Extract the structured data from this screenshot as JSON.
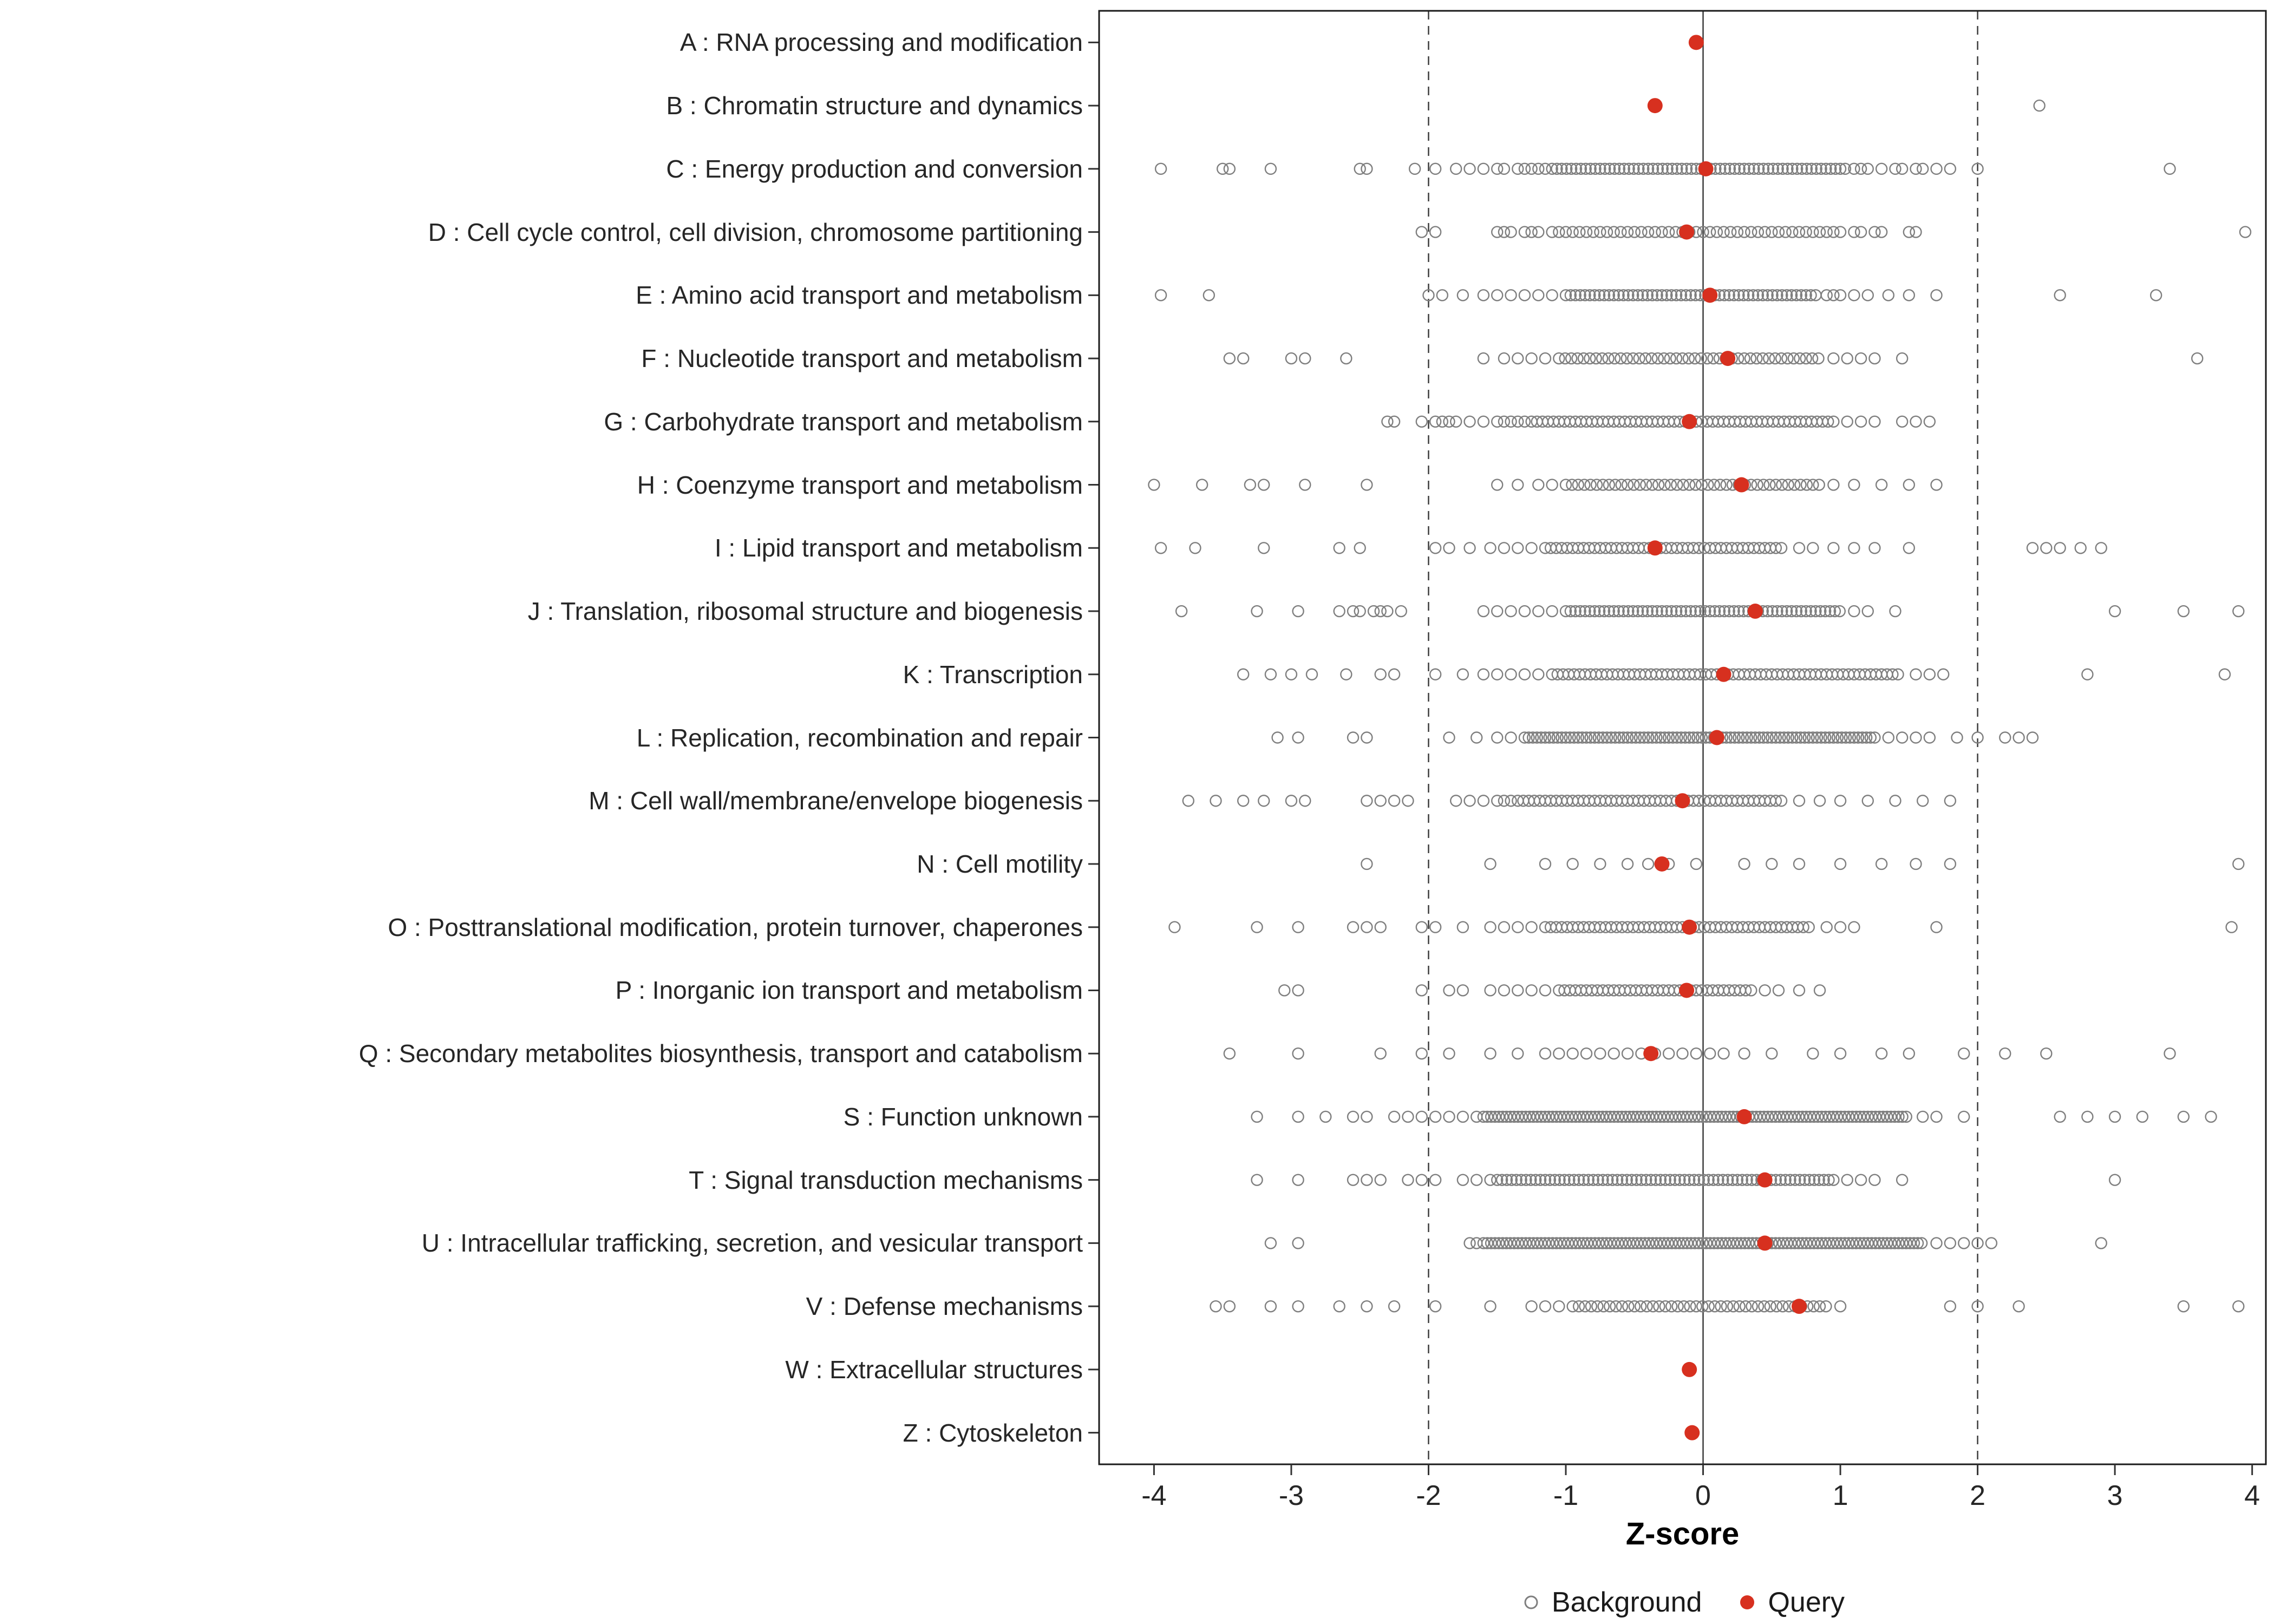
{
  "chart_data": {
    "type": "scatter",
    "subtype": "strip-dot-plot",
    "title": "",
    "xlabel": "Z-score",
    "ylabel": "",
    "xlim": [
      -4.4,
      4.1
    ],
    "x_ticks": [
      -4,
      -3,
      -2,
      -1,
      0,
      1,
      2,
      3,
      4
    ],
    "grid": false,
    "reference_lines": {
      "solid": [
        0
      ],
      "dashed": [
        -2,
        2
      ]
    },
    "legend_position": "bottom",
    "legend": [
      {
        "label": "Background",
        "marker": "open-circle"
      },
      {
        "label": "Query",
        "marker": "filled-circle"
      }
    ],
    "colors": {
      "query": "#D7301F",
      "background_stroke": "#7F7F7F",
      "reference_line": "#3C3C3C",
      "panel_border": "#1A1A1A",
      "tick": "#333333"
    },
    "categories": [
      {
        "code": "A",
        "label": "A : RNA processing and modification",
        "query": -0.05,
        "background": []
      },
      {
        "code": "B",
        "label": "B : Chromatin structure and dynamics",
        "query": -0.35,
        "background": [
          2.45
        ]
      },
      {
        "code": "C",
        "label": "C : Energy production and conversion",
        "query": 0.02,
        "background": [
          -3.95,
          -3.5,
          -3.45,
          -3.15,
          -2.5,
          -2.45,
          -2.1,
          -1.95,
          -1.8,
          -1.7,
          -1.6,
          -1.5,
          -1.45,
          -1.35,
          -1.3,
          -1.25,
          -1.2,
          -1.15,
          {
            "from": -1.1,
            "to": 1.05,
            "step": 0.035
          },
          1.1,
          1.15,
          1.2,
          1.3,
          1.4,
          1.45,
          1.55,
          1.6,
          1.7,
          1.8,
          2.0,
          3.4
        ]
      },
      {
        "code": "D",
        "label": "D : Cell cycle control, cell division, chromosome partitioning",
        "query": -0.12,
        "background": [
          -2.05,
          -1.95,
          -1.5,
          -1.45,
          -1.4,
          -1.3,
          -1.25,
          -1.2,
          -1.1,
          {
            "from": -1.05,
            "to": 1.0,
            "step": 0.05
          },
          1.1,
          1.15,
          1.25,
          1.3,
          1.5,
          1.55,
          3.95
        ]
      },
      {
        "code": "E",
        "label": "E : Amino acid transport and metabolism",
        "query": 0.05,
        "background": [
          -3.95,
          -3.6,
          -2.0,
          -1.9,
          -1.75,
          -1.6,
          -1.5,
          -1.4,
          -1.3,
          -1.2,
          -1.1,
          {
            "from": -1.0,
            "to": 0.85,
            "step": 0.035
          },
          0.9,
          0.95,
          1.0,
          1.1,
          1.2,
          1.35,
          1.5,
          1.7,
          2.6,
          3.3
        ]
      },
      {
        "code": "F",
        "label": "F : Nucleotide transport and metabolism",
        "query": 0.18,
        "background": [
          -3.45,
          -3.35,
          -3.0,
          -2.9,
          -2.6,
          -1.6,
          -1.45,
          -1.35,
          -1.25,
          -1.15,
          {
            "from": -1.05,
            "to": 0.85,
            "step": 0.045
          },
          0.95,
          1.05,
          1.15,
          1.25,
          1.45,
          3.6
        ]
      },
      {
        "code": "G",
        "label": "G : Carbohydrate transport and metabolism",
        "query": -0.1,
        "background": [
          -2.3,
          -2.25,
          -2.05,
          -1.95,
          -1.9,
          -1.85,
          -1.8,
          -1.7,
          -1.6,
          -1.5,
          -1.45,
          -1.4,
          -1.35,
          -1.3,
          {
            "from": -1.25,
            "to": 0.95,
            "step": 0.04
          },
          1.05,
          1.15,
          1.25,
          1.45,
          1.55,
          1.65
        ]
      },
      {
        "code": "H",
        "label": "H : Coenzyme transport and metabolism",
        "query": 0.28,
        "background": [
          -4.0,
          -3.65,
          -3.3,
          -3.2,
          -2.9,
          -2.45,
          -1.5,
          -1.35,
          -1.2,
          -1.1,
          {
            "from": -1.0,
            "to": 0.85,
            "step": 0.045
          },
          0.95,
          1.1,
          1.3,
          1.5,
          1.7
        ]
      },
      {
        "code": "I",
        "label": "I : Lipid transport and metabolism",
        "query": -0.35,
        "background": [
          -3.95,
          -3.7,
          -3.2,
          -2.65,
          -2.5,
          -1.95,
          -1.85,
          -1.7,
          -1.55,
          -1.45,
          -1.35,
          -1.25,
          {
            "from": -1.15,
            "to": 0.6,
            "step": 0.04
          },
          0.7,
          0.8,
          0.95,
          1.1,
          1.25,
          1.5,
          2.4,
          2.5,
          2.6,
          2.75,
          2.9
        ]
      },
      {
        "code": "J",
        "label": "J : Translation, ribosomal structure and biogenesis",
        "query": 0.38,
        "background": [
          -3.8,
          -3.25,
          -2.95,
          -2.65,
          -2.55,
          -2.5,
          -2.4,
          -2.35,
          -2.3,
          -2.2,
          -1.6,
          -1.5,
          -1.4,
          -1.3,
          -1.2,
          -1.1,
          {
            "from": -1.0,
            "to": 1.0,
            "step": 0.035
          },
          1.1,
          1.2,
          1.4,
          3.0,
          3.5,
          3.9
        ]
      },
      {
        "code": "K",
        "label": "K : Transcription",
        "query": 0.15,
        "background": [
          -3.35,
          -3.15,
          -3.0,
          -2.85,
          -2.6,
          -2.35,
          -2.25,
          -1.95,
          -1.75,
          -1.6,
          -1.5,
          -1.4,
          -1.3,
          -1.2,
          {
            "from": -1.1,
            "to": 1.45,
            "step": 0.04
          },
          1.55,
          1.65,
          1.75,
          2.8,
          3.8
        ]
      },
      {
        "code": "L",
        "label": "L : Replication, recombination and repair",
        "query": 0.1,
        "background": [
          -3.1,
          -2.95,
          -2.55,
          -2.45,
          -1.85,
          -1.65,
          -1.5,
          -1.4,
          {
            "from": -1.3,
            "to": 1.25,
            "step": 0.03
          },
          1.35,
          1.45,
          1.55,
          1.65,
          1.85,
          2.0,
          2.2,
          2.3,
          2.4
        ]
      },
      {
        "code": "M",
        "label": "M : Cell wall/membrane/envelope biogenesis",
        "query": -0.15,
        "background": [
          -3.75,
          -3.55,
          -3.35,
          -3.2,
          -3.0,
          -2.9,
          -2.45,
          -2.35,
          -2.25,
          -2.15,
          -1.8,
          -1.7,
          -1.6,
          -1.5,
          -1.45,
          -1.4,
          {
            "from": -1.35,
            "to": 0.6,
            "step": 0.04
          },
          0.7,
          0.85,
          1.0,
          1.2,
          1.4,
          1.6,
          1.8
        ]
      },
      {
        "code": "N",
        "label": "N : Cell motility",
        "query": -0.3,
        "background": [
          -2.45,
          -1.55,
          -1.15,
          -0.95,
          -0.75,
          -0.55,
          -0.4,
          -0.25,
          -0.05,
          0.3,
          0.5,
          0.7,
          1.0,
          1.3,
          1.55,
          1.8,
          3.9
        ]
      },
      {
        "code": "O",
        "label": "O : Posttranslational modification, protein turnover, chaperones",
        "query": -0.1,
        "background": [
          -3.85,
          -3.25,
          -2.95,
          -2.55,
          -2.45,
          -2.35,
          -2.05,
          -1.95,
          -1.75,
          -1.55,
          -1.45,
          -1.35,
          -1.25,
          {
            "from": -1.15,
            "to": 0.8,
            "step": 0.04
          },
          0.9,
          1.0,
          1.1,
          1.7,
          3.85
        ]
      },
      {
        "code": "P",
        "label": "P : Inorganic ion transport and metabolism",
        "query": -0.12,
        "background": [
          -3.05,
          -2.95,
          -2.05,
          -1.85,
          -1.75,
          -1.55,
          -1.45,
          -1.35,
          -1.25,
          -1.15,
          {
            "from": -1.05,
            "to": 0.35,
            "step": 0.04
          },
          0.45,
          0.55,
          0.7,
          0.85
        ]
      },
      {
        "code": "Q",
        "label": "Q : Secondary metabolites biosynthesis, transport and catabolism",
        "query": -0.38,
        "background": [
          -3.45,
          -2.95,
          -2.35,
          -2.05,
          -1.85,
          -1.55,
          -1.35,
          -1.15,
          -1.05,
          -0.95,
          -0.85,
          -0.75,
          -0.65,
          -0.55,
          -0.45,
          -0.35,
          -0.25,
          -0.15,
          -0.05,
          0.05,
          0.15,
          0.3,
          0.5,
          0.8,
          1.0,
          1.3,
          1.5,
          1.9,
          2.2,
          2.5,
          3.4
        ]
      },
      {
        "code": "S",
        "label": "S : Function unknown",
        "query": 0.3,
        "background": [
          -3.25,
          -2.95,
          -2.75,
          -2.55,
          -2.45,
          -2.25,
          -2.15,
          -2.05,
          -1.95,
          -1.85,
          -1.75,
          -1.65,
          {
            "from": -1.6,
            "to": 1.5,
            "step": 0.028
          },
          1.6,
          1.7,
          1.9,
          2.6,
          2.8,
          3.0,
          3.2,
          3.5,
          3.7
        ]
      },
      {
        "code": "T",
        "label": "T : Signal transduction mechanisms",
        "query": 0.45,
        "background": [
          -3.25,
          -2.95,
          -2.55,
          -2.45,
          -2.35,
          -2.15,
          -2.05,
          -1.95,
          -1.75,
          -1.65,
          -1.55,
          {
            "from": -1.5,
            "to": 0.95,
            "step": 0.035
          },
          1.05,
          1.15,
          1.25,
          1.45,
          3.0
        ]
      },
      {
        "code": "U",
        "label": "U : Intracellular trafficking, secretion, and vesicular transport",
        "query": 0.45,
        "background": [
          -3.15,
          -2.95,
          -1.7,
          -1.65,
          {
            "from": -1.6,
            "to": 1.6,
            "step": 0.028
          },
          1.7,
          1.8,
          1.9,
          2.0,
          2.1,
          2.9
        ]
      },
      {
        "code": "V",
        "label": "V : Defense mechanisms",
        "query": 0.7,
        "background": [
          -3.55,
          -3.45,
          -3.15,
          -2.95,
          -2.65,
          -2.45,
          -2.25,
          -1.95,
          -1.55,
          -1.25,
          -1.15,
          -1.05,
          {
            "from": -0.95,
            "to": 0.9,
            "step": 0.045
          },
          1.0,
          1.8,
          2.0,
          2.3,
          3.5,
          3.9
        ]
      },
      {
        "code": "W",
        "label": "W : Extracellular structures",
        "query": -0.1,
        "background": []
      },
      {
        "code": "Z",
        "label": "Z : Cytoskeleton",
        "query": -0.08,
        "background": []
      }
    ]
  }
}
